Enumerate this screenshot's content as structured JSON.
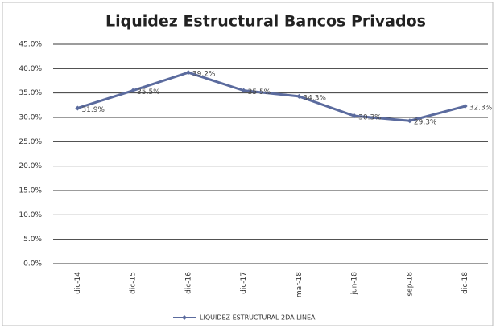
{
  "chart_data": {
    "type": "line",
    "title": "Liquidez Estructural Bancos Privados",
    "categories": [
      "dic-14",
      "dic-15",
      "dic-16",
      "dic-17",
      "mar-18",
      "jun-18",
      "sep-18",
      "dic-18"
    ],
    "series": [
      {
        "name": "LIQUIDEZ ESTRUCTURAL 2DA LINEA",
        "color": "#5b6b9e",
        "values": [
          31.9,
          35.5,
          39.2,
          35.5,
          34.3,
          30.3,
          29.3,
          32.3
        ],
        "value_labels": [
          "31.9%",
          "35.5%",
          "39.2%",
          "35.5%",
          "34.3%",
          "30.3%",
          "29.3%",
          "32.3%"
        ]
      }
    ],
    "ylim": [
      0,
      45
    ],
    "yticks": [
      {
        "value": 0,
        "label": "0.0%"
      },
      {
        "value": 5,
        "label": "5.0%"
      },
      {
        "value": 10,
        "label": "10.0%"
      },
      {
        "value": 15,
        "label": "15.0%"
      },
      {
        "value": 20,
        "label": "20.0%"
      },
      {
        "value": 25,
        "label": "25.0%"
      },
      {
        "value": 30,
        "label": "30.0%"
      },
      {
        "value": 35,
        "label": "35.0%"
      },
      {
        "value": 40,
        "label": "40.0%"
      },
      {
        "value": 45,
        "label": "45.0%"
      }
    ],
    "grid": true,
    "legend": "bottom"
  }
}
